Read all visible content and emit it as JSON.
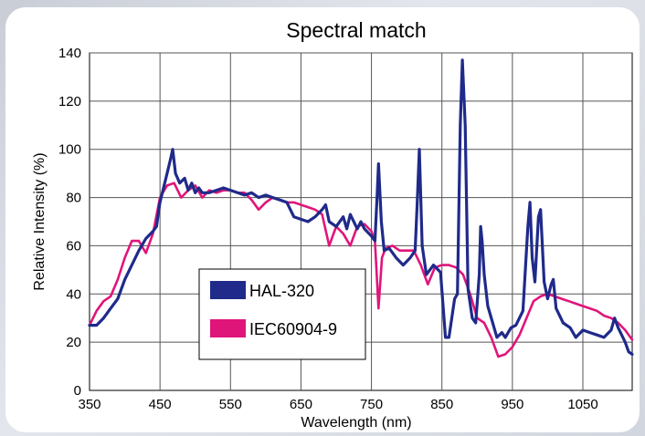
{
  "chart_data": {
    "type": "line",
    "title": "Spectral match",
    "xlabel": "Wavelength (nm)",
    "ylabel": "Relative Intensity (%)",
    "xlim": [
      350,
      1120
    ],
    "ylim": [
      0,
      140
    ],
    "xticks": [
      350,
      450,
      550,
      650,
      750,
      850,
      950,
      1050
    ],
    "yticks": [
      0,
      20,
      40,
      60,
      80,
      100,
      120,
      140
    ],
    "grid": true,
    "legend_position": "lower-left",
    "series": [
      {
        "name": "HAL-320",
        "color": "#1f2a8a",
        "points": [
          [
            350,
            27
          ],
          [
            360,
            27
          ],
          [
            370,
            30
          ],
          [
            380,
            34
          ],
          [
            390,
            38
          ],
          [
            400,
            46
          ],
          [
            410,
            52
          ],
          [
            420,
            58
          ],
          [
            430,
            63
          ],
          [
            440,
            66
          ],
          [
            445,
            68
          ],
          [
            450,
            78
          ],
          [
            455,
            84
          ],
          [
            460,
            90
          ],
          [
            465,
            96
          ],
          [
            468,
            100
          ],
          [
            472,
            90
          ],
          [
            478,
            86
          ],
          [
            485,
            88
          ],
          [
            490,
            83
          ],
          [
            495,
            86
          ],
          [
            500,
            82
          ],
          [
            505,
            84
          ],
          [
            510,
            82
          ],
          [
            520,
            82
          ],
          [
            530,
            83
          ],
          [
            540,
            84
          ],
          [
            550,
            83
          ],
          [
            560,
            82
          ],
          [
            570,
            81
          ],
          [
            580,
            82
          ],
          [
            590,
            80
          ],
          [
            600,
            81
          ],
          [
            610,
            80
          ],
          [
            620,
            79
          ],
          [
            630,
            78
          ],
          [
            640,
            72
          ],
          [
            650,
            71
          ],
          [
            660,
            70
          ],
          [
            670,
            72
          ],
          [
            680,
            75
          ],
          [
            685,
            77
          ],
          [
            690,
            70
          ],
          [
            700,
            68
          ],
          [
            710,
            72
          ],
          [
            715,
            67
          ],
          [
            720,
            73
          ],
          [
            730,
            67
          ],
          [
            735,
            70
          ],
          [
            740,
            67
          ],
          [
            750,
            64
          ],
          [
            755,
            62
          ],
          [
            758,
            80
          ],
          [
            760,
            94
          ],
          [
            764,
            70
          ],
          [
            768,
            58
          ],
          [
            775,
            59
          ],
          [
            785,
            55
          ],
          [
            795,
            52
          ],
          [
            805,
            55
          ],
          [
            812,
            58
          ],
          [
            815,
            78
          ],
          [
            818,
            100
          ],
          [
            822,
            60
          ],
          [
            828,
            48
          ],
          [
            838,
            52
          ],
          [
            848,
            49
          ],
          [
            855,
            22
          ],
          [
            860,
            22
          ],
          [
            868,
            38
          ],
          [
            872,
            40
          ],
          [
            876,
            110
          ],
          [
            879,
            137
          ],
          [
            883,
            110
          ],
          [
            887,
            42
          ],
          [
            893,
            30
          ],
          [
            898,
            28
          ],
          [
            903,
            48
          ],
          [
            905,
            68
          ],
          [
            907,
            62
          ],
          [
            910,
            48
          ],
          [
            915,
            35
          ],
          [
            922,
            28
          ],
          [
            928,
            22
          ],
          [
            935,
            24
          ],
          [
            940,
            22
          ],
          [
            948,
            26
          ],
          [
            955,
            27
          ],
          [
            965,
            33
          ],
          [
            972,
            68
          ],
          [
            975,
            78
          ],
          [
            978,
            55
          ],
          [
            982,
            45
          ],
          [
            987,
            72
          ],
          [
            990,
            75
          ],
          [
            995,
            45
          ],
          [
            1000,
            38
          ],
          [
            1005,
            44
          ],
          [
            1008,
            46
          ],
          [
            1012,
            34
          ],
          [
            1022,
            28
          ],
          [
            1032,
            26
          ],
          [
            1040,
            22
          ],
          [
            1050,
            25
          ],
          [
            1060,
            24
          ],
          [
            1070,
            23
          ],
          [
            1080,
            22
          ],
          [
            1090,
            25
          ],
          [
            1095,
            30
          ],
          [
            1100,
            26
          ],
          [
            1110,
            20
          ],
          [
            1115,
            16
          ],
          [
            1120,
            15
          ]
        ]
      },
      {
        "name": "IEC60904-9",
        "color": "#e0157a",
        "points": [
          [
            350,
            27
          ],
          [
            360,
            33
          ],
          [
            370,
            37
          ],
          [
            380,
            39
          ],
          [
            390,
            46
          ],
          [
            400,
            55
          ],
          [
            410,
            62
          ],
          [
            420,
            62
          ],
          [
            430,
            57
          ],
          [
            440,
            65
          ],
          [
            450,
            80
          ],
          [
            460,
            85
          ],
          [
            470,
            86
          ],
          [
            480,
            80
          ],
          [
            490,
            83
          ],
          [
            500,
            85
          ],
          [
            510,
            80
          ],
          [
            520,
            83
          ],
          [
            530,
            82
          ],
          [
            540,
            83
          ],
          [
            550,
            83
          ],
          [
            560,
            82
          ],
          [
            570,
            82
          ],
          [
            580,
            79
          ],
          [
            590,
            75
          ],
          [
            600,
            78
          ],
          [
            610,
            80
          ],
          [
            620,
            79
          ],
          [
            630,
            78
          ],
          [
            640,
            78
          ],
          [
            650,
            77
          ],
          [
            660,
            76
          ],
          [
            670,
            75
          ],
          [
            680,
            73
          ],
          [
            690,
            60
          ],
          [
            700,
            68
          ],
          [
            710,
            65
          ],
          [
            720,
            60
          ],
          [
            730,
            68
          ],
          [
            740,
            69
          ],
          [
            750,
            66
          ],
          [
            755,
            62
          ],
          [
            760,
            34
          ],
          [
            765,
            55
          ],
          [
            770,
            59
          ],
          [
            780,
            60
          ],
          [
            790,
            58
          ],
          [
            800,
            58
          ],
          [
            810,
            58
          ],
          [
            820,
            52
          ],
          [
            830,
            44
          ],
          [
            840,
            51
          ],
          [
            850,
            52
          ],
          [
            860,
            52
          ],
          [
            870,
            51
          ],
          [
            880,
            48
          ],
          [
            890,
            40
          ],
          [
            900,
            30
          ],
          [
            910,
            28
          ],
          [
            920,
            22
          ],
          [
            930,
            14
          ],
          [
            940,
            15
          ],
          [
            950,
            18
          ],
          [
            960,
            23
          ],
          [
            970,
            30
          ],
          [
            980,
            37
          ],
          [
            990,
            39
          ],
          [
            1000,
            40
          ],
          [
            1010,
            39
          ],
          [
            1020,
            38
          ],
          [
            1030,
            37
          ],
          [
            1040,
            36
          ],
          [
            1050,
            35
          ],
          [
            1060,
            34
          ],
          [
            1070,
            33
          ],
          [
            1080,
            31
          ],
          [
            1090,
            30
          ],
          [
            1100,
            28
          ],
          [
            1110,
            25
          ],
          [
            1120,
            21
          ]
        ]
      }
    ]
  }
}
